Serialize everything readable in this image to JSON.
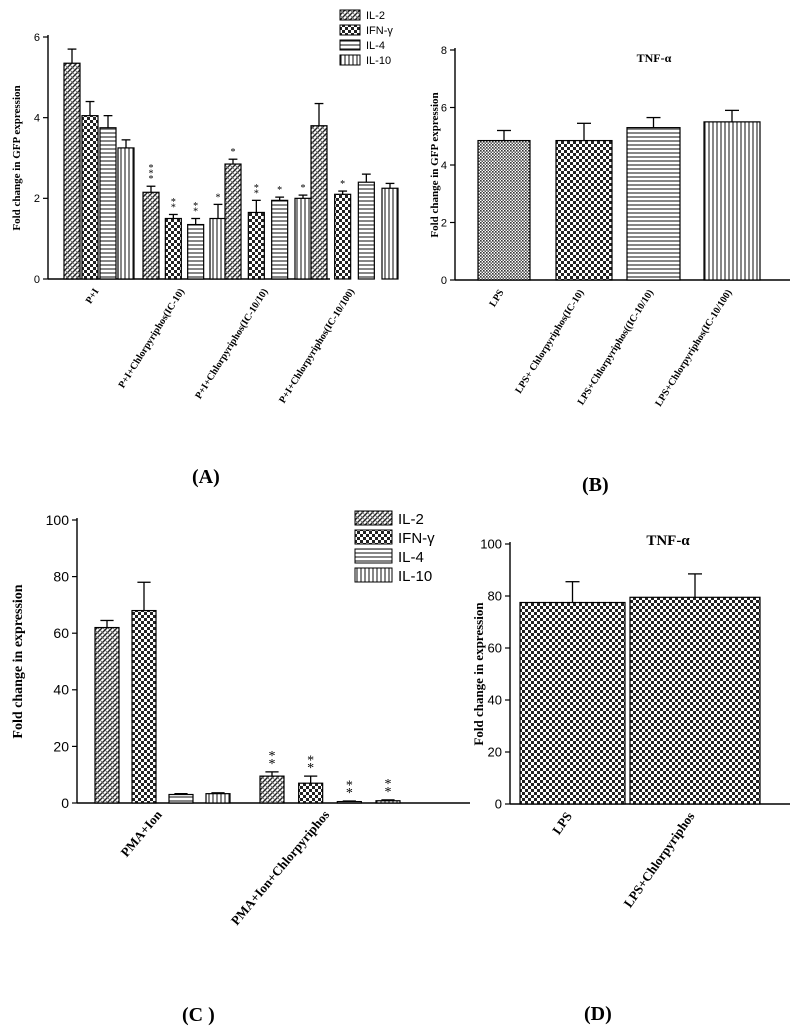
{
  "panels": {
    "A": "(A)",
    "B": "(B)",
    "C": "(C )",
    "D": "(D)"
  },
  "chart_data": [
    {
      "id": "A",
      "type": "bar",
      "title": "",
      "ylabel": "Fold change in GFP expression",
      "xlabel": "",
      "ylim": [
        0,
        6
      ],
      "yticks": [
        0,
        2,
        4,
        6
      ],
      "categories": [
        "P+I",
        "P+I+Chlorpyriphos(IC-10)",
        "P+I+Chlorpyriphos(IC-10/10)",
        "P+I+Chlorpyriphos(IC-10/100)"
      ],
      "series": [
        {
          "name": "IL-2",
          "pattern": "diag",
          "values": [
            5.35,
            2.15,
            2.85,
            3.8
          ],
          "errors": [
            0.35,
            0.15,
            0.12,
            0.55
          ],
          "sig": [
            "",
            "***",
            "*",
            ""
          ]
        },
        {
          "name": "IFN-γ",
          "pattern": "check",
          "values": [
            4.05,
            1.5,
            1.65,
            2.1
          ],
          "errors": [
            0.35,
            0.1,
            0.3,
            0.08
          ],
          "sig": [
            "",
            "**",
            "**",
            "*"
          ]
        },
        {
          "name": "IL-4",
          "pattern": "hline",
          "values": [
            3.75,
            1.35,
            1.95,
            2.4
          ],
          "errors": [
            0.3,
            0.15,
            0.08,
            0.2
          ],
          "sig": [
            "",
            "**",
            "*",
            ""
          ]
        },
        {
          "name": "IL-10",
          "pattern": "vline",
          "values": [
            3.25,
            1.5,
            2.0,
            2.25
          ],
          "errors": [
            0.2,
            0.35,
            0.08,
            0.12
          ],
          "sig": [
            "",
            "*",
            "*",
            ""
          ]
        }
      ],
      "legend": "top-right"
    },
    {
      "id": "B",
      "type": "bar",
      "title": "TNF-α",
      "ylabel": "Fold change in GFP expression",
      "xlabel": "",
      "ylim": [
        0,
        8
      ],
      "yticks": [
        0,
        2,
        4,
        6,
        8
      ],
      "categories": [
        "LPS",
        "LPS+ Chlorpyriphos(IC-10)",
        "LPS+Chlorpyriphos((IC-10/10)",
        "LPS+Chlorpyriphos(IC-10/100)"
      ],
      "patterns": [
        "dots",
        "check",
        "hline",
        "vline"
      ],
      "values": [
        4.85,
        4.85,
        5.3,
        5.5
      ],
      "errors": [
        0.35,
        0.6,
        0.35,
        0.4
      ]
    },
    {
      "id": "C",
      "type": "bar",
      "title": "",
      "ylabel": "Fold change in expression",
      "xlabel": "",
      "ylim": [
        0,
        100
      ],
      "yticks": [
        0,
        20,
        40,
        60,
        80,
        100
      ],
      "categories": [
        "PMA+Ion",
        "PMA+Ion+Chlorpyriphos"
      ],
      "series": [
        {
          "name": "IL-2",
          "pattern": "diag",
          "values": [
            62,
            9.5
          ],
          "errors": [
            2.5,
            1.5
          ],
          "sig": [
            "",
            "**"
          ]
        },
        {
          "name": "IFN-γ",
          "pattern": "check",
          "values": [
            68,
            7
          ],
          "errors": [
            10,
            2.5
          ],
          "sig": [
            "",
            "**"
          ]
        },
        {
          "name": "IL-4",
          "pattern": "hline",
          "values": [
            3,
            0.5
          ],
          "errors": [
            0.3,
            0.2
          ],
          "sig": [
            "",
            "**"
          ]
        },
        {
          "name": "IL-10",
          "pattern": "vline",
          "values": [
            3.3,
            0.8
          ],
          "errors": [
            0.3,
            0.3
          ],
          "sig": [
            "",
            "**"
          ]
        }
      ],
      "legend": "top-right"
    },
    {
      "id": "D",
      "type": "bar",
      "title": "TNF-α",
      "ylabel": "Fold change in expression",
      "xlabel": "",
      "ylim": [
        0,
        100
      ],
      "yticks": [
        0,
        20,
        40,
        60,
        80,
        100
      ],
      "categories": [
        "LPS",
        "LPS+Chlorpyriphos"
      ],
      "patterns": [
        "check",
        "check"
      ],
      "values": [
        77.5,
        79.5
      ],
      "errors": [
        8,
        9
      ]
    }
  ]
}
